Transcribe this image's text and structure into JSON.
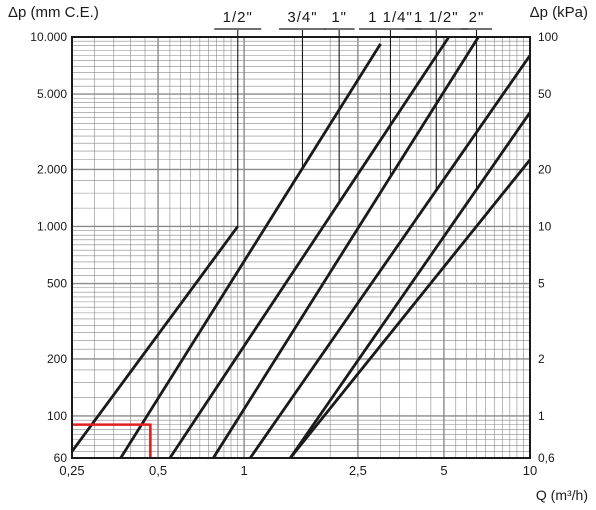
{
  "chart_data": {
    "type": "line",
    "title": "",
    "xlabel": "Q (m³/h)",
    "ylabel_left": "Δp (mm C.E.)",
    "ylabel_right": "Δp (kPa)",
    "x_scale": "log",
    "y_scale": "log",
    "xlim": [
      0.25,
      10
    ],
    "ylim": [
      60,
      10000
    ],
    "x_ticks": [
      {
        "value": 0.25,
        "label": "0,25"
      },
      {
        "value": 0.5,
        "label": "0,5"
      },
      {
        "value": 1,
        "label": "1"
      },
      {
        "value": 2.5,
        "label": "2,5"
      },
      {
        "value": 5,
        "label": "5"
      },
      {
        "value": 10,
        "label": "10"
      }
    ],
    "y_ticks_left": [
      {
        "value": 60,
        "label": "60"
      },
      {
        "value": 100,
        "label": "100"
      },
      {
        "value": 200,
        "label": "200"
      },
      {
        "value": 500,
        "label": "500"
      },
      {
        "value": 1000,
        "label": "1.000"
      },
      {
        "value": 2000,
        "label": "2.000"
      },
      {
        "value": 5000,
        "label": "5.000"
      },
      {
        "value": 10000,
        "label": "10.000"
      }
    ],
    "y_ticks_right": [
      {
        "value": 60,
        "label": "0,6"
      },
      {
        "value": 100,
        "label": "1"
      },
      {
        "value": 200,
        "label": "2"
      },
      {
        "value": 500,
        "label": "5"
      },
      {
        "value": 1000,
        "label": "10"
      },
      {
        "value": 2000,
        "label": "20"
      },
      {
        "value": 5000,
        "label": "50"
      },
      {
        "value": 10000,
        "label": "100"
      }
    ],
    "grid": true,
    "series": [
      {
        "name": "1/2\"",
        "x": [
          0.25,
          0.95
        ],
        "y": [
          65,
          1000
        ],
        "label_x": 0.95
      },
      {
        "name": "3/4\"",
        "x": [
          0.37,
          3.0
        ],
        "y": [
          60,
          9200
        ],
        "label_x": 1.6
      },
      {
        "name": "1\"",
        "x": [
          0.55,
          5.2
        ],
        "y": [
          60,
          10000
        ],
        "label_x": 2.15
      },
      {
        "name": "1 1/4\"",
        "x": [
          0.78,
          6.6
        ],
        "y": [
          60,
          10000
        ],
        "label_x": 3.25
      },
      {
        "name": "1 1/2\"",
        "x": [
          1.05,
          10
        ],
        "y": [
          60,
          8000
        ],
        "label_x": 4.7
      },
      {
        "name": "2\"",
        "x": [
          1.45,
          10
        ],
        "y": [
          60,
          4000
        ],
        "label_x": 6.5
      },
      {
        "name": "",
        "x": [
          1.45,
          10
        ],
        "y": [
          60,
          2250
        ],
        "label_x": null
      }
    ],
    "example_marker": {
      "q": 0.47,
      "dp": 90,
      "color": "#e02020"
    },
    "colors": {
      "line": "#1a1a1a",
      "grid": "#8a8a8a",
      "marker": "#e02020"
    }
  }
}
